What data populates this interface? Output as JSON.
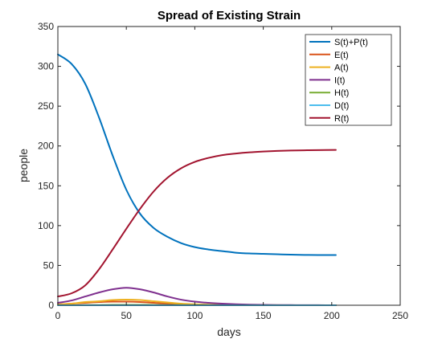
{
  "chart_data": {
    "type": "line",
    "title": "Spread of Existing Strain",
    "xlabel": "days",
    "ylabel": "people",
    "xlim": [
      0,
      250
    ],
    "ylim": [
      0,
      350
    ],
    "xticks": [
      0,
      50,
      100,
      150,
      200,
      250
    ],
    "yticks": [
      0,
      50,
      100,
      150,
      200,
      250,
      300,
      350
    ],
    "grid": false,
    "legend_position": "top-right",
    "x": [
      0,
      10,
      20,
      30,
      40,
      50,
      60,
      70,
      80,
      90,
      100,
      110,
      120,
      130,
      140,
      150,
      160,
      170,
      180,
      190,
      203
    ],
    "series": [
      {
        "name": "S(t)+P(t)",
        "color": "#0072BD",
        "values": [
          315,
          303,
          278,
          236,
          188,
          145,
          115,
          97,
          86,
          78,
          73,
          70,
          68,
          66,
          65,
          64.5,
          64,
          63.5,
          63.2,
          63,
          63
        ]
      },
      {
        "name": "E(t)",
        "color": "#D95319",
        "values": [
          1,
          2,
          3,
          4,
          4.5,
          4.5,
          4,
          3,
          2,
          1.2,
          0.8,
          0.5,
          0.3,
          0.2,
          0.1,
          0.1,
          0,
          0,
          0,
          0,
          0
        ]
      },
      {
        "name": "A(t)",
        "color": "#EDB120",
        "values": [
          1,
          2,
          4,
          5,
          6.5,
          7,
          6.5,
          5,
          3.5,
          2,
          1.2,
          0.8,
          0.5,
          0.3,
          0.2,
          0.1,
          0.1,
          0,
          0,
          0,
          0
        ]
      },
      {
        "name": "I(t)",
        "color": "#7E2F8E",
        "values": [
          3,
          6,
          11,
          16,
          20,
          22,
          20,
          16,
          11,
          7,
          4.5,
          3,
          2,
          1.3,
          0.8,
          0.5,
          0.3,
          0.2,
          0.1,
          0.1,
          0
        ]
      },
      {
        "name": "H(t)",
        "color": "#77AC30",
        "values": [
          0,
          0,
          0.2,
          0.3,
          0.5,
          0.5,
          0.5,
          0.4,
          0.3,
          0.2,
          0.1,
          0.1,
          0,
          0,
          0,
          0,
          0,
          0,
          0,
          0,
          0
        ]
      },
      {
        "name": "D(t)",
        "color": "#4DBEEE",
        "values": [
          0,
          0,
          0,
          0,
          0,
          0,
          0,
          0,
          0,
          0,
          0,
          0,
          0,
          0,
          0,
          0,
          0,
          0,
          0,
          0,
          0
        ]
      },
      {
        "name": "R(t)",
        "color": "#A2142F",
        "values": [
          11,
          15,
          25,
          45,
          70,
          96,
          121,
          143,
          160,
          172,
          180,
          185,
          188.5,
          190.5,
          192,
          193,
          193.8,
          194.3,
          194.6,
          194.8,
          195
        ]
      }
    ]
  }
}
